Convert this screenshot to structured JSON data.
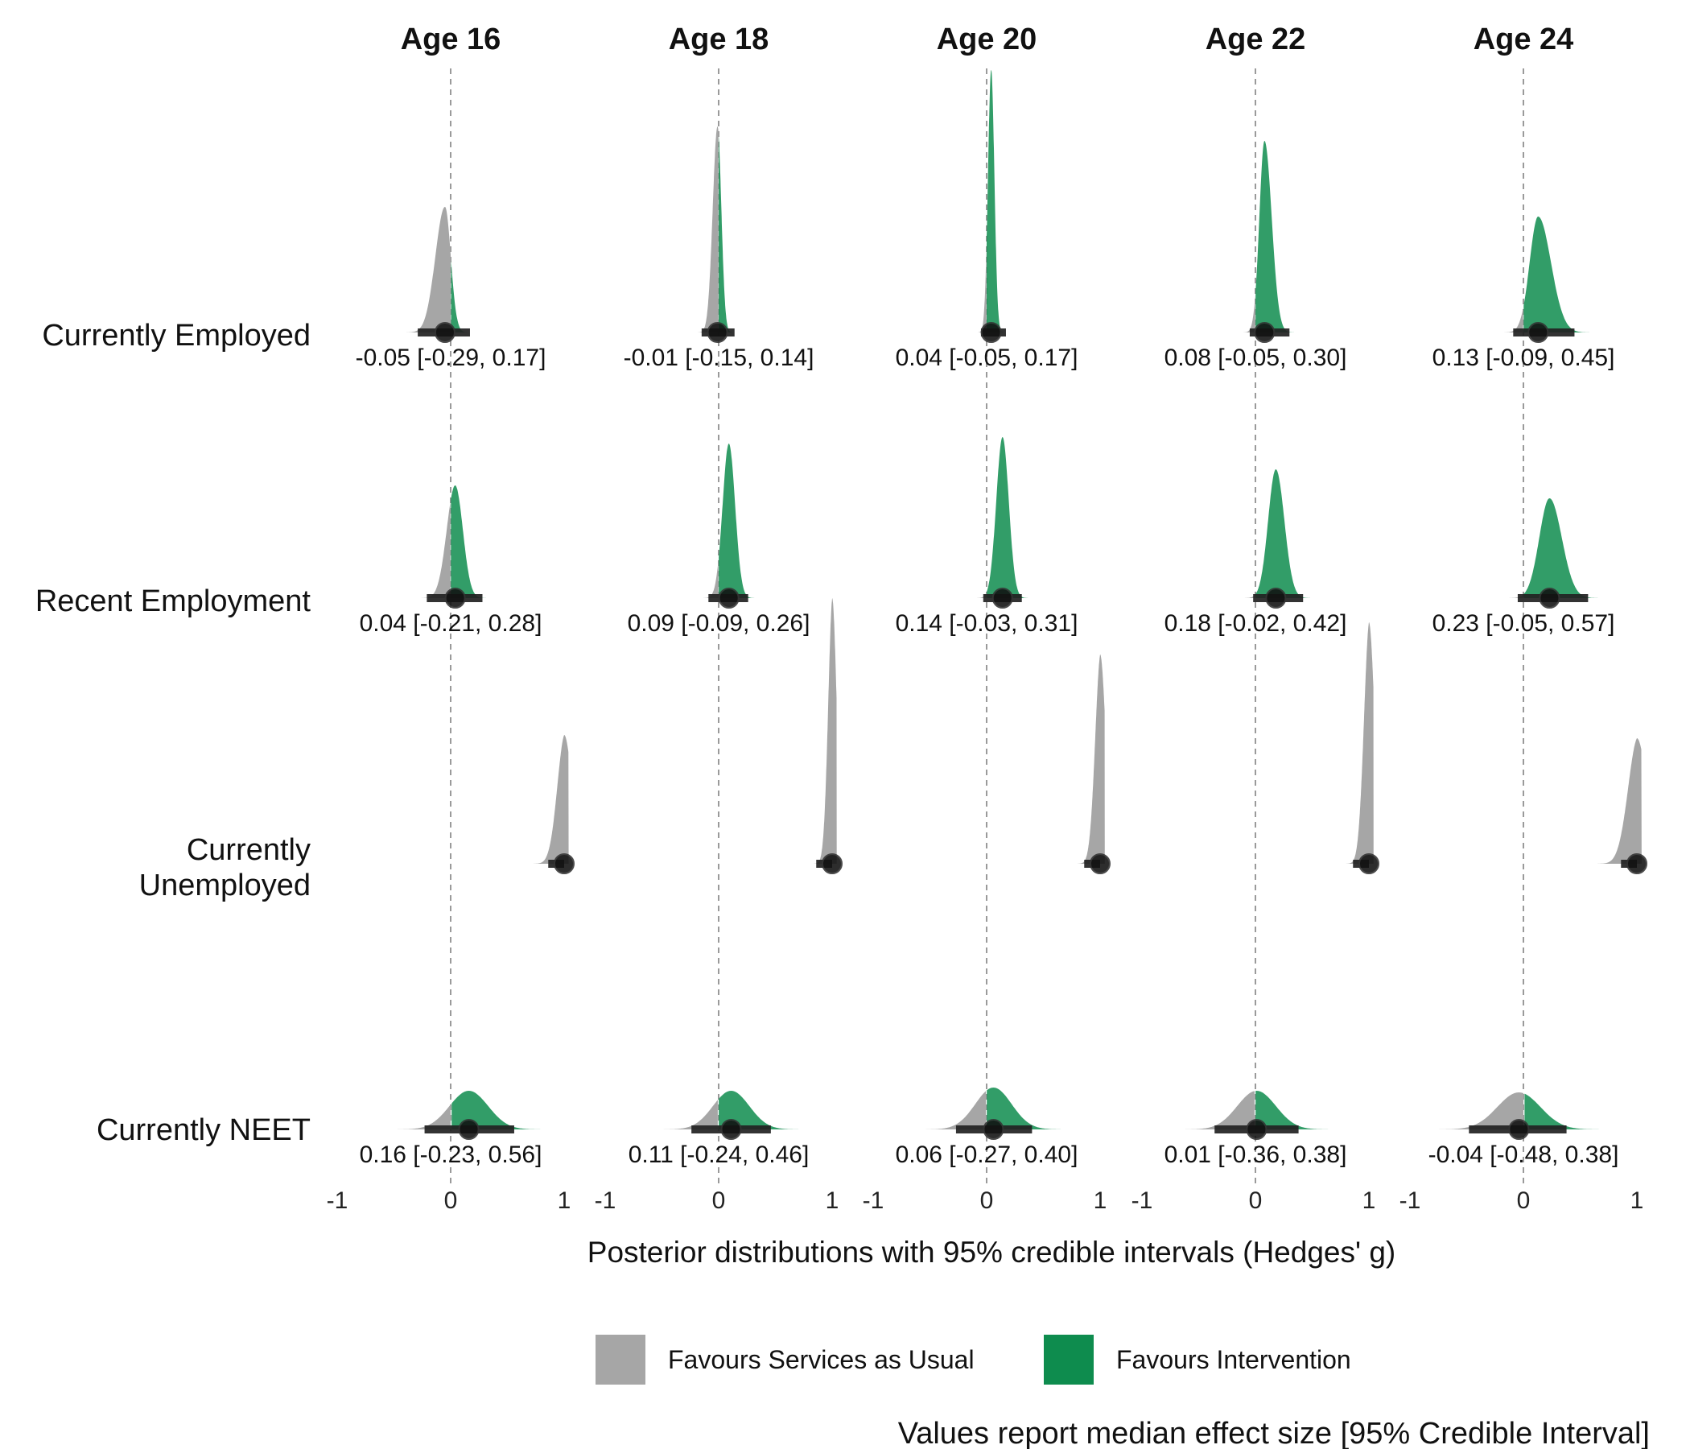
{
  "chart_data": {
    "type": "density-halfeye",
    "facet_columns": [
      "Age 16",
      "Age 18",
      "Age 20",
      "Age 22",
      "Age 24"
    ],
    "outcomes": [
      "Currently Employed",
      "Recent Employment",
      "Currently\nUnemployed",
      "Currently NEET"
    ],
    "x_ticks": [
      "-1",
      "0",
      "1"
    ],
    "xlim": [
      -1,
      1.05
    ],
    "reference_line": 0,
    "xlabel": "Posterior distributions with 95% credible intervals (Hedges' g)",
    "caption": "Values report median effect size [95% Credible Interval]",
    "legend": [
      {
        "label": "Favours Services as Usual",
        "color": "#a6a6a6"
      },
      {
        "label": "Favours Intervention",
        "color": "#0e8c4e"
      }
    ],
    "colors": {
      "favours_usual": "#a6a6a6",
      "favours_intervention": "#0e8c4e",
      "reference": "#9a9a9a"
    },
    "cells": [
      [
        {
          "median": -0.05,
          "lo": -0.29,
          "hi": 0.17,
          "sd": 0.085,
          "skew": 0.6,
          "peak": 0.78,
          "label": "-0.05 [-0.29, 0.17]"
        },
        {
          "median": -0.01,
          "lo": -0.15,
          "hi": 0.14,
          "sd": 0.042,
          "skew": 0.8,
          "peak": 1.28,
          "label": "-0.01 [-0.15, 0.14]"
        },
        {
          "median": 0.04,
          "lo": -0.05,
          "hi": 0.17,
          "sd": 0.028,
          "skew": 1.0,
          "peak": 1.63,
          "label": "0.04 [-0.05, 0.17]"
        },
        {
          "median": 0.08,
          "lo": -0.05,
          "hi": 0.3,
          "sd": 0.045,
          "skew": 1.4,
          "peak": 1.19,
          "label": "0.08 [-0.05, 0.30]"
        },
        {
          "median": 0.13,
          "lo": -0.09,
          "hi": 0.45,
          "sd": 0.075,
          "skew": 1.5,
          "peak": 0.72,
          "label": "0.13 [-0.09, 0.45]"
        }
      ],
      [
        {
          "median": 0.04,
          "lo": -0.21,
          "hi": 0.28,
          "sd": 0.075,
          "skew": 0.9,
          "peak": 0.7,
          "label": "0.04 [-0.21, 0.28]"
        },
        {
          "median": 0.09,
          "lo": -0.09,
          "hi": 0.26,
          "sd": 0.055,
          "skew": 1.0,
          "peak": 0.96,
          "label": "0.09 [-0.09, 0.26]"
        },
        {
          "median": 0.14,
          "lo": -0.03,
          "hi": 0.31,
          "sd": 0.055,
          "skew": 1.0,
          "peak": 1.0,
          "label": "0.14 [-0.03, 0.31]"
        },
        {
          "median": 0.18,
          "lo": -0.02,
          "hi": 0.42,
          "sd": 0.068,
          "skew": 1.1,
          "peak": 0.8,
          "label": "0.18 [-0.02, 0.42]"
        },
        {
          "median": 0.23,
          "lo": -0.05,
          "hi": 0.57,
          "sd": 0.09,
          "skew": 1.2,
          "peak": 0.62,
          "label": "0.23 [-0.05, 0.57]"
        }
      ],
      [
        {
          "median": 1.0,
          "lo": 0.95,
          "hi": 1.05,
          "sd": 0.07,
          "peak": 0.8,
          "label": ""
        },
        {
          "median": 1.0,
          "lo": 0.95,
          "hi": 1.05,
          "sd": 0.04,
          "peak": 1.65,
          "label": ""
        },
        {
          "median": 1.0,
          "lo": 0.95,
          "hi": 1.05,
          "sd": 0.05,
          "peak": 1.3,
          "label": ""
        },
        {
          "median": 1.0,
          "lo": 0.85,
          "hi": 1.05,
          "sd": 0.05,
          "peak": 1.5,
          "label": ""
        },
        {
          "median": 1.0,
          "lo": 0.75,
          "hi": 1.05,
          "sd": 0.09,
          "peak": 0.78,
          "label": ""
        }
      ],
      [
        {
          "median": 0.16,
          "lo": -0.23,
          "hi": 0.56,
          "sd": 0.17,
          "skew": 1.0,
          "peak": 0.24,
          "label": "0.16 [-0.23, 0.56]"
        },
        {
          "median": 0.11,
          "lo": -0.24,
          "hi": 0.46,
          "sd": 0.16,
          "skew": 1.0,
          "peak": 0.24,
          "label": "0.11 [-0.24, 0.46]"
        },
        {
          "median": 0.06,
          "lo": -0.27,
          "hi": 0.4,
          "sd": 0.16,
          "skew": 1.0,
          "peak": 0.26,
          "label": "0.06 [-0.27, 0.40]"
        },
        {
          "median": 0.01,
          "lo": -0.36,
          "hi": 0.38,
          "sd": 0.17,
          "skew": 1.0,
          "peak": 0.24,
          "label": "0.01 [-0.36, 0.38]"
        },
        {
          "median": -0.04,
          "lo": -0.48,
          "hi": 0.38,
          "sd": 0.19,
          "skew": 1.0,
          "peak": 0.23,
          "label": "-0.04 [-0.48, 0.38]"
        }
      ]
    ]
  }
}
